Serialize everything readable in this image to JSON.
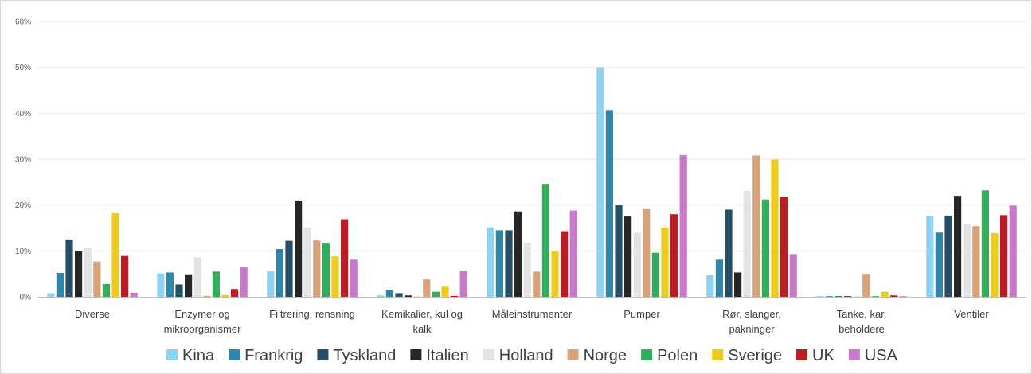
{
  "chart_data": {
    "type": "bar",
    "categories": [
      [
        "Diverse"
      ],
      [
        "Enzymer og",
        "mikroorganismer"
      ],
      [
        "Filtrering, rensning"
      ],
      [
        "Kemikalier, kul og",
        "kalk"
      ],
      [
        "Måleinstrumenter"
      ],
      [
        "Pumper"
      ],
      [
        "Rør, slanger,",
        "pakninger"
      ],
      [
        "Tanke, kar,",
        "beholdere"
      ],
      [
        "Ventiler"
      ]
    ],
    "series": [
      {
        "name": "Kina",
        "color": "#8fd3f3",
        "values": [
          0.8,
          5.1,
          5.6,
          0.3,
          15.1,
          50.0,
          4.7,
          0.1,
          17.7
        ]
      },
      {
        "name": "Frankrig",
        "color": "#2e86ab",
        "values": [
          5.2,
          5.3,
          10.4,
          1.5,
          14.5,
          40.7,
          8.1,
          0.1,
          14.0
        ]
      },
      {
        "name": "Tyskland",
        "color": "#244f66",
        "values": [
          12.5,
          2.7,
          12.2,
          0.8,
          14.5,
          20.0,
          19.0,
          0.1,
          17.7
        ]
      },
      {
        "name": "Italien",
        "color": "#262626",
        "values": [
          10.0,
          4.9,
          21.0,
          0.3,
          18.6,
          17.5,
          5.3,
          0.1,
          22.0
        ]
      },
      {
        "name": "Holland",
        "color": "#e3e3e3",
        "values": [
          10.6,
          8.6,
          15.1,
          0.1,
          11.8,
          14.0,
          23.1,
          0.1,
          15.9
        ]
      },
      {
        "name": "Norge",
        "color": "#d9a377",
        "values": [
          7.7,
          0.2,
          12.3,
          3.8,
          5.5,
          19.1,
          30.8,
          5.0,
          15.4
        ]
      },
      {
        "name": "Polen",
        "color": "#2eb05a",
        "values": [
          2.8,
          5.5,
          11.6,
          1.1,
          24.6,
          9.6,
          21.2,
          0.1,
          23.2
        ]
      },
      {
        "name": "Sverige",
        "color": "#eccc1c",
        "values": [
          18.2,
          0.4,
          8.8,
          2.2,
          9.9,
          15.1,
          29.9,
          1.1,
          13.9
        ]
      },
      {
        "name": "UK",
        "color": "#b81f24",
        "values": [
          8.9,
          1.7,
          16.9,
          0.2,
          14.3,
          18.0,
          21.7,
          0.3,
          17.8
        ]
      },
      {
        "name": "USA",
        "color": "#c77ac7",
        "values": [
          0.9,
          6.4,
          8.1,
          5.6,
          18.8,
          30.9,
          9.3,
          0.1,
          19.9
        ]
      }
    ],
    "y_ticks": [
      "0%",
      "10%",
      "20%",
      "30%",
      "40%",
      "50%",
      "60%"
    ],
    "ylim": [
      0,
      60
    ],
    "grid": true,
    "legend_position": "bottom",
    "title": "",
    "xlabel": "",
    "ylabel": ""
  }
}
